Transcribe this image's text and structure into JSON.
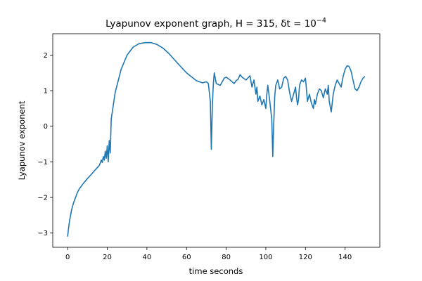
{
  "chart_data": {
    "type": "line",
    "title": "Lyapunov exponent graph, H = 315, δt = 10",
    "title_exponent": "−4",
    "xlabel": "time seconds",
    "ylabel": "Lyapunov exponent",
    "xlim": [
      -7.5,
      157.5
    ],
    "ylim": [
      -3.4,
      2.6
    ],
    "xticks": [
      0,
      20,
      40,
      60,
      80,
      100,
      120,
      140
    ],
    "xtick_labels": [
      "0",
      "20",
      "40",
      "60",
      "80",
      "100",
      "120",
      "140"
    ],
    "yticks": [
      -3,
      -2,
      -1,
      0,
      1,
      2
    ],
    "ytick_labels": [
      "−3",
      "−2",
      "−1",
      "0",
      "1",
      "2"
    ],
    "grid": false,
    "colors": {
      "line": "#1f77b4"
    },
    "series": [
      {
        "x": [
          0,
          0.5,
          1,
          2,
          3,
          4,
          5,
          6,
          8,
          10,
          12,
          14,
          16,
          17,
          17.5,
          18,
          18.5,
          19,
          19.5,
          20,
          20.5,
          21,
          21.5,
          22,
          24,
          27,
          30,
          33,
          36,
          39,
          42,
          45,
          48,
          51,
          55,
          60,
          65,
          68,
          70,
          71,
          72,
          72.5,
          73,
          73.3,
          73.6,
          74,
          75,
          77,
          78,
          79,
          80,
          82,
          84,
          85,
          86,
          87,
          88,
          90,
          92,
          93,
          94,
          95,
          95.5,
          96,
          97,
          98,
          99,
          100,
          100.5,
          101,
          102,
          103,
          103.5,
          104,
          104.5,
          105,
          106,
          107,
          108,
          109,
          110,
          111,
          112,
          113,
          114,
          115,
          115.5,
          116,
          116.5,
          117,
          118,
          119,
          120,
          121,
          122,
          123,
          124,
          124.5,
          125,
          126,
          127,
          128,
          129,
          130,
          131,
          131.5,
          132,
          133,
          134,
          135,
          136,
          137,
          138,
          139,
          140,
          141,
          142,
          143,
          144,
          145,
          146,
          147,
          148,
          149,
          150
        ],
        "y": [
          -3.1,
          -2.85,
          -2.65,
          -2.35,
          -2.15,
          -2.0,
          -1.85,
          -1.75,
          -1.6,
          -1.47,
          -1.35,
          -1.22,
          -1.1,
          -0.95,
          -1.02,
          -0.85,
          -0.95,
          -0.7,
          -0.9,
          -0.55,
          -1.0,
          -0.4,
          -0.75,
          0.2,
          0.95,
          1.6,
          2.0,
          2.22,
          2.32,
          2.35,
          2.35,
          2.3,
          2.2,
          2.05,
          1.8,
          1.5,
          1.28,
          1.22,
          1.25,
          1.2,
          0.7,
          -0.65,
          0.5,
          0.95,
          1.25,
          1.5,
          1.2,
          1.15,
          1.25,
          1.35,
          1.38,
          1.3,
          1.2,
          1.28,
          1.32,
          1.45,
          1.38,
          1.3,
          1.42,
          1.1,
          1.3,
          0.9,
          1.1,
          0.7,
          0.85,
          0.6,
          0.75,
          0.5,
          0.9,
          1.15,
          0.7,
          0.2,
          -0.85,
          0.1,
          0.85,
          1.15,
          1.3,
          1.05,
          1.1,
          1.35,
          1.4,
          1.3,
          0.95,
          0.7,
          0.9,
          1.1,
          0.8,
          0.6,
          0.75,
          1.15,
          1.3,
          1.25,
          1.35,
          0.7,
          0.9,
          0.65,
          0.5,
          0.75,
          0.62,
          0.9,
          1.05,
          1.0,
          0.8,
          1.05,
          0.9,
          1.15,
          0.7,
          0.4,
          0.9,
          1.15,
          1.3,
          1.2,
          1.1,
          1.4,
          1.6,
          1.7,
          1.68,
          1.55,
          1.3,
          1.05,
          1.0,
          1.1,
          1.25,
          1.35,
          1.4
        ]
      }
    ]
  }
}
